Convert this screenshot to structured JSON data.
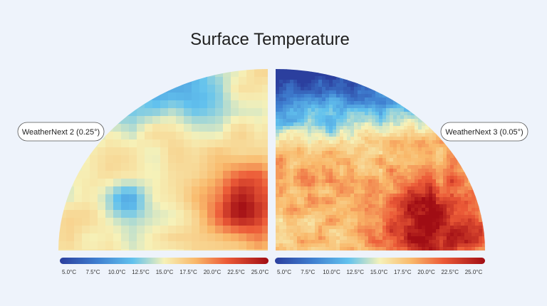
{
  "header": {
    "title": "Surface Temperature"
  },
  "panels": [
    {
      "label": "WeatherNext 2 (0.25°)",
      "ticks": [
        "5.0°C",
        "7.5°C",
        "10.0°C",
        "12.5°C",
        "15.0°C",
        "17.5°C",
        "20.0°C",
        "22.5°C",
        "25.0°C"
      ]
    },
    {
      "label": "WeatherNext 3 (0.05°)",
      "ticks": [
        "5.0°C",
        "7.5°C",
        "10.0°C",
        "12.5°C",
        "15.0°C",
        "17.5°C",
        "20.0°C",
        "22.5°C",
        "25.0°C"
      ]
    }
  ]
}
